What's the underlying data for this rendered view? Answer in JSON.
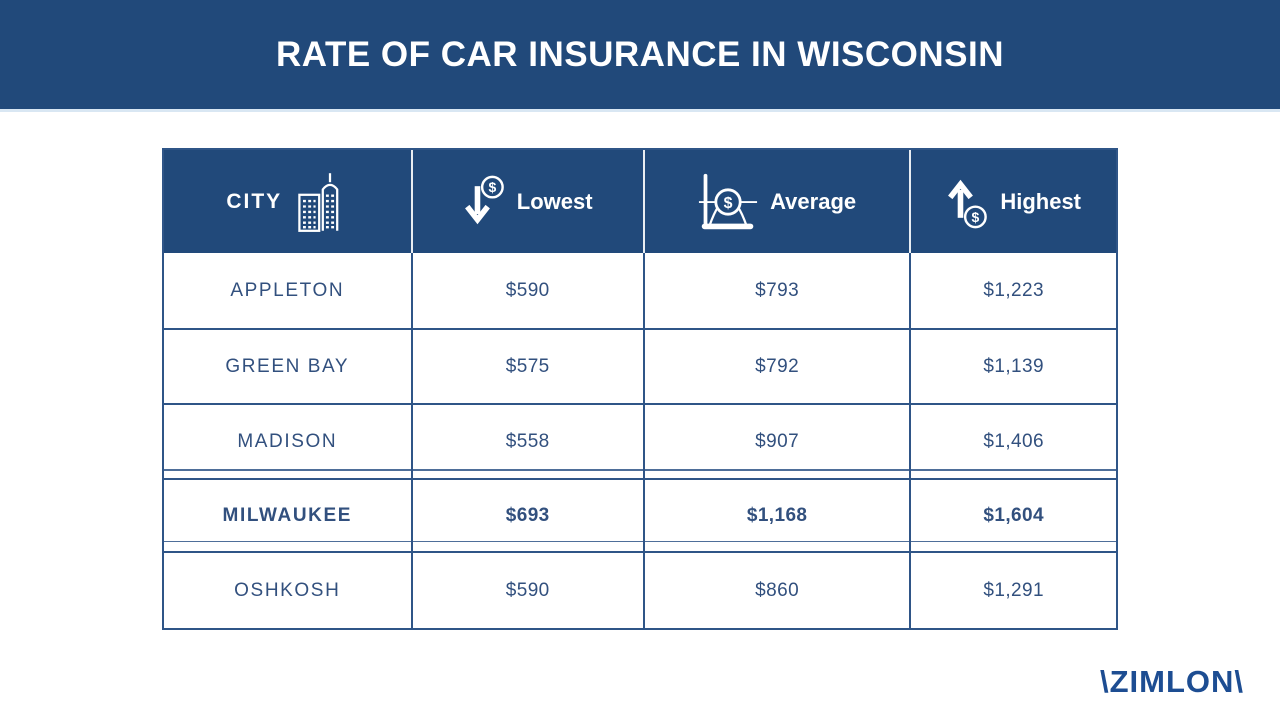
{
  "title": "RATE OF CAR INSURANCE IN WISCONSIN",
  "logo_text": "\\ZIMLON\\",
  "colors": {
    "banner_bg": "#21497a",
    "grid_line": "#2f5587",
    "cell_text": "#32507e",
    "logo_blue": "#1d4d92",
    "header_text": "#ffffff"
  },
  "table": {
    "columns": [
      {
        "label": "CITY",
        "icon": "buildings-icon"
      },
      {
        "label": "Lowest",
        "icon": "arrow-down-dollar-icon"
      },
      {
        "label": "Average",
        "icon": "bell-curve-dollar-icon"
      },
      {
        "label": "Highest",
        "icon": "arrow-up-dollar-icon"
      }
    ],
    "rows": [
      {
        "city": "APPLETON",
        "lowest": "$590",
        "average": "$793",
        "highest": "$1,223",
        "highlight": false
      },
      {
        "city": "GREEN BAY",
        "lowest": "$575",
        "average": "$792",
        "highest": "$1,139",
        "highlight": false
      },
      {
        "city": "MADISON",
        "lowest": "$558",
        "average": "$907",
        "highest": "$1,406",
        "highlight": false
      },
      {
        "city": "MILWAUKEE",
        "lowest": "$693",
        "average": "$1,168",
        "highest": "$1,604",
        "highlight": true
      },
      {
        "city": "OSHKOSH",
        "lowest": "$590",
        "average": "$860",
        "highest": "$1,291",
        "highlight": false
      }
    ]
  },
  "chart_data": {
    "type": "table",
    "title": "RATE OF CAR INSURANCE IN WISCONSIN",
    "columns": [
      "CITY",
      "Lowest",
      "Average",
      "Highest"
    ],
    "rows": [
      [
        "APPLETON",
        590,
        793,
        1223
      ],
      [
        "GREEN BAY",
        575,
        792,
        1139
      ],
      [
        "MADISON",
        558,
        907,
        1406
      ],
      [
        "MILWAUKEE",
        693,
        1168,
        1604
      ],
      [
        "OSHKOSH",
        590,
        860,
        1291
      ]
    ],
    "units": "USD per period",
    "highlighted_row": "MILWAUKEE",
    "source_brand": "ZIMLON"
  }
}
